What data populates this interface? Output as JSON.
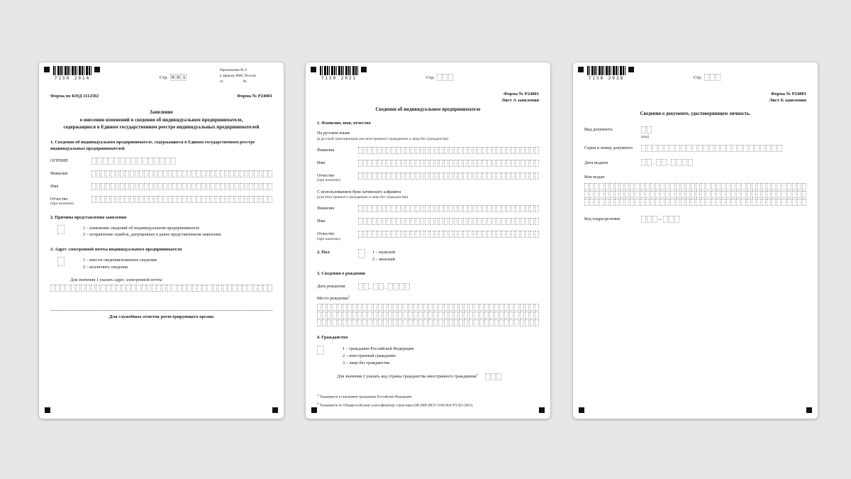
{
  "ui": {
    "background_color": "#e7e7e7",
    "page_color": "#ffffff",
    "accent_black": "#111111"
  },
  "page1": {
    "barcode_digits": "7150 2014",
    "page_label": "Стр.",
    "page_number": [
      "0",
      "0",
      "1"
    ],
    "annex": {
      "line1": "Приложение № 9",
      "line2": "к приказу ФНС России",
      "line3_left": "от",
      "line3_right": "№"
    },
    "knd_label": "Форма по КНД 1112502",
    "form_no": "Форма № Р24001",
    "title_line1": "Заявление",
    "title_line2": "о внесении изменений в сведения об индивидуальном предпринимателе,",
    "title_line3": "содержащиеся в Едином государственном реестре индивидуальных предпринимателей",
    "section1_title": "1. Сведения об индивидуальном предпринимателе, содержащиеся в Едином государственном реестре индивидуальных предпринимателей",
    "ogrnip_label": "ОГРНИП",
    "surname_label": "Фамилия",
    "name_label": "Имя",
    "patronymic_label": "Отчество",
    "patronymic_note": "(при наличии)",
    "section2_title": "2. Причина представления заявления",
    "section2_options": [
      "1 – изменение сведений об индивидуальном предпринимателе",
      "2 – исправление ошибок, допущенных в ранее представленном заявлении"
    ],
    "section3_title": "3. Адрес электронной почты индивидуального предпринимателя",
    "section3_options": [
      "1 – внести сведения/изменить сведения",
      "2 – исключить сведения"
    ],
    "email_hint": "Для значения 1 указать адрес электронной почты",
    "service_marks": "Для служебных отметок регистрирующего органа"
  },
  "page2": {
    "barcode_digits": "7150 2021",
    "page_label": "Стр.",
    "form_no": "Форма № Р24001",
    "sheet_label": "Лист А заявления",
    "title": "Сведения об индивидуальном предпринимателе",
    "section1_title": "1. Фамилия, имя, отчество",
    "russian_label": "На русском языке",
    "russian_note": "(в русской транскрипции для иностранного гражданина и лица без гражданства)",
    "surname_label": "Фамилия",
    "name_label": "Имя",
    "patronymic_label": "Отчество",
    "patronymic_note": "(при наличии)",
    "latin_label": "С использованием букв латинского алфавита",
    "latin_note": "(для иностранного гражданина и лица без гражданства)",
    "section2_title": "2. Пол",
    "gender_options": [
      "1 – мужской",
      "2 – женский"
    ],
    "section3_title": "3. Сведения о рождении",
    "birth_date_label": "Дата рождения",
    "birth_place_label": "Место рождения",
    "birth_place_sup": "1",
    "section4_title": "4. Гражданство",
    "citizenship_options": [
      "1 – гражданин Российской Федерации",
      "2 – иностранный гражданин",
      "3 – лицо без гражданства"
    ],
    "country_code_hint": "Для значения 2 указать код страны гражданства иностранного гражданина",
    "country_code_sup": "2",
    "footnote1_sup": "1",
    "footnote1_text": "Указывается в отношении гражданина Российской Федерации.",
    "footnote2_sup": "2",
    "footnote2_text": "Указывается по Общероссийскому классификатору стран мира (ОК (МК (ИСО 3166) 004-97) 025-2001)."
  },
  "page3": {
    "barcode_digits": "7150 2038",
    "page_label": "Стр.",
    "form_no": "Форма № Р24001",
    "sheet_label": "Лист Б заявления",
    "title": "Сведения о документе, удостоверяющем личность.",
    "doc_type_label": "Вид документа",
    "doc_type_note": "(код)",
    "series_label": "Серия и номер документа",
    "issue_date_label": "Дата выдачи",
    "issued_by_label": "Кем выдан",
    "dept_code_label": "Код подразделения"
  }
}
